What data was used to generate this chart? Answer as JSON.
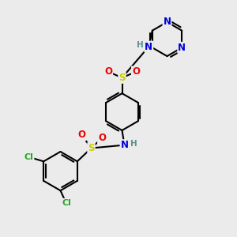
{
  "bg_color": "#ebebeb",
  "atom_colors": {
    "C": "#000000",
    "N": "#0000dd",
    "H": "#5f8f8f",
    "S": "#cccc00",
    "O": "#ee0000",
    "Cl": "#22aa22"
  },
  "bond_color": "#000000",
  "bond_width": 1.5,
  "font_size_atom": 8.5,
  "font_size_H": 7.5
}
